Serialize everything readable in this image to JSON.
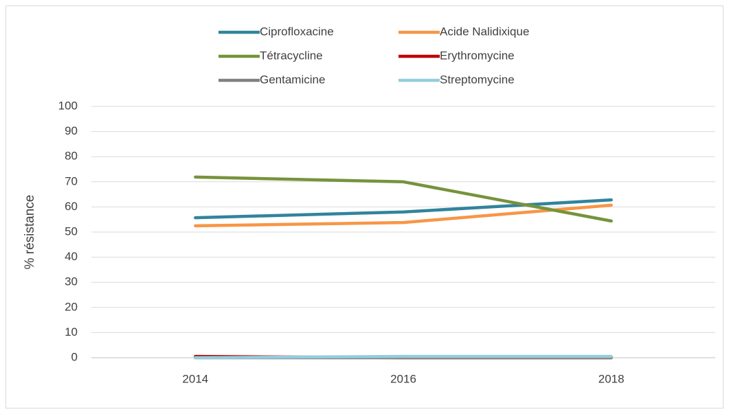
{
  "chart_data": {
    "type": "line",
    "categories": [
      "2014",
      "2016",
      "2018"
    ],
    "ylabel": "% résistance",
    "ylim": [
      0,
      100
    ],
    "yticks": [
      0,
      10,
      20,
      30,
      40,
      50,
      60,
      70,
      80,
      90,
      100
    ],
    "grid": true,
    "series": [
      {
        "name": "Ciprofloxacine",
        "color": "#31849b",
        "values": [
          55.7,
          58,
          62.8
        ]
      },
      {
        "name": "Acide Nalidixique",
        "color": "#f79646",
        "values": [
          52.5,
          53.8,
          60.7
        ]
      },
      {
        "name": "Tétracycline",
        "color": "#77933c",
        "values": [
          71.9,
          70,
          54.4
        ]
      },
      {
        "name": "Erythromycine",
        "color": "#c00000",
        "values": [
          0.5,
          0,
          0
        ]
      },
      {
        "name": "Gentamicine",
        "color": "#808080",
        "values": [
          0,
          0,
          0
        ]
      },
      {
        "name": "Streptomycine",
        "color": "#93cddd",
        "values": [
          0,
          0.5,
          0.5
        ]
      }
    ]
  }
}
